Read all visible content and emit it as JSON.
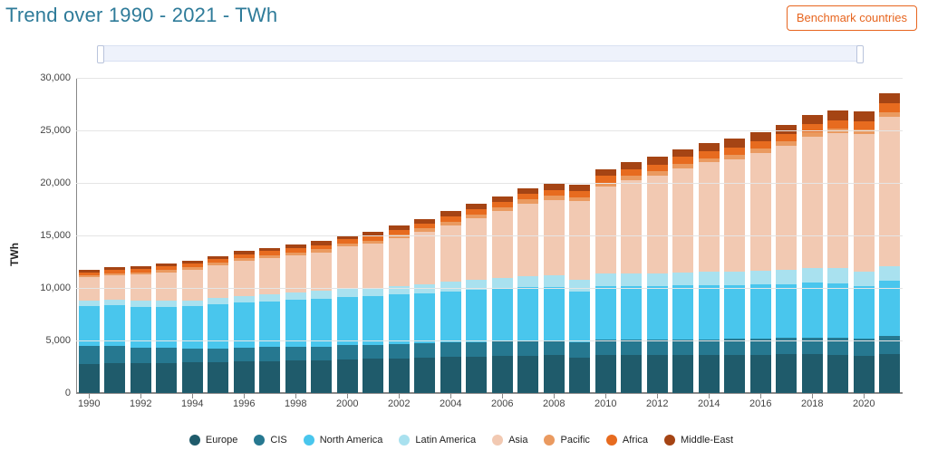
{
  "header": {
    "title": "Trend over 1990 - 2021 - TWh",
    "benchmark_label": "Benchmark countries"
  },
  "chart": {
    "type": "stacked-bar",
    "ylabel": "TWh",
    "label_fontsize": 12,
    "background_color": "#ffffff",
    "grid_color": "#e5e5e5",
    "axis_color": "#888888",
    "bar_width": 0.82,
    "ylim": [
      0,
      30000
    ],
    "ytick_step": 5000,
    "yticks": [
      0,
      5000,
      10000,
      15000,
      20000,
      25000,
      30000
    ],
    "years": [
      1990,
      1991,
      1992,
      1993,
      1994,
      1995,
      1996,
      1997,
      1998,
      1999,
      2000,
      2001,
      2002,
      2003,
      2004,
      2005,
      2006,
      2007,
      2008,
      2009,
      2010,
      2011,
      2012,
      2013,
      2014,
      2015,
      2016,
      2017,
      2018,
      2019,
      2020,
      2021
    ],
    "x_label_step": 2,
    "series": [
      {
        "name": "Europe",
        "color": "#1f5b6b"
      },
      {
        "name": "CIS",
        "color": "#267890"
      },
      {
        "name": "North America",
        "color": "#49c6ed"
      },
      {
        "name": "Latin America",
        "color": "#a9e1ef"
      },
      {
        "name": "Asia",
        "color": "#f2c9b2"
      },
      {
        "name": "Pacific",
        "color": "#ea9a60"
      },
      {
        "name": "Africa",
        "color": "#e76b1f"
      },
      {
        "name": "Middle-East",
        "color": "#a54414"
      }
    ],
    "data": [
      [
        2800,
        1700,
        3800,
        500,
        2200,
        200,
        300,
        250
      ],
      [
        2830,
        1650,
        3850,
        520,
        2350,
        210,
        310,
        260
      ],
      [
        2850,
        1500,
        3870,
        540,
        2500,
        220,
        320,
        270
      ],
      [
        2870,
        1400,
        3950,
        560,
        2700,
        230,
        330,
        280
      ],
      [
        2900,
        1300,
        4050,
        590,
        2900,
        240,
        340,
        290
      ],
      [
        2950,
        1300,
        4180,
        620,
        3100,
        250,
        350,
        300
      ],
      [
        3020,
        1300,
        4300,
        650,
        3300,
        260,
        370,
        320
      ],
      [
        3060,
        1300,
        4350,
        690,
        3450,
        270,
        380,
        340
      ],
      [
        3090,
        1310,
        4440,
        720,
        3550,
        280,
        390,
        360
      ],
      [
        3120,
        1320,
        4520,
        750,
        3700,
        290,
        400,
        380
      ],
      [
        3200,
        1330,
        4650,
        800,
        3950,
        300,
        420,
        400
      ],
      [
        3260,
        1340,
        4600,
        820,
        4200,
        310,
        440,
        420
      ],
      [
        3300,
        1350,
        4720,
        850,
        4550,
        320,
        460,
        440
      ],
      [
        3360,
        1360,
        4780,
        880,
        4950,
        330,
        480,
        460
      ],
      [
        3420,
        1380,
        4870,
        920,
        5400,
        340,
        500,
        480
      ],
      [
        3460,
        1390,
        4970,
        960,
        5850,
        350,
        520,
        500
      ],
      [
        3520,
        1420,
        5000,
        1000,
        6350,
        360,
        540,
        520
      ],
      [
        3560,
        1450,
        5100,
        1040,
        6900,
        370,
        560,
        550
      ],
      [
        3580,
        1460,
        5080,
        1080,
        7200,
        370,
        580,
        580
      ],
      [
        3400,
        1400,
        4850,
        1100,
        7500,
        380,
        590,
        600
      ],
      [
        3600,
        1500,
        5100,
        1150,
        8300,
        390,
        620,
        640
      ],
      [
        3580,
        1520,
        5100,
        1200,
        8900,
        390,
        630,
        670
      ],
      [
        3600,
        1530,
        5050,
        1240,
        9300,
        400,
        650,
        700
      ],
      [
        3600,
        1520,
        5100,
        1280,
        9900,
        400,
        670,
        730
      ],
      [
        3580,
        1530,
        5150,
        1300,
        10400,
        400,
        690,
        760
      ],
      [
        3620,
        1530,
        5120,
        1320,
        10700,
        400,
        710,
        790
      ],
      [
        3650,
        1540,
        5130,
        1350,
        11200,
        410,
        730,
        820
      ],
      [
        3700,
        1560,
        5100,
        1360,
        11800,
        420,
        760,
        860
      ],
      [
        3700,
        1600,
        5220,
        1380,
        12500,
        420,
        790,
        900
      ],
      [
        3660,
        1620,
        5180,
        1400,
        12900,
        420,
        810,
        930
      ],
      [
        3550,
        1600,
        5050,
        1380,
        13100,
        410,
        800,
        930
      ],
      [
        3750,
        1700,
        5200,
        1450,
        14200,
        430,
        860,
        980
      ]
    ]
  }
}
